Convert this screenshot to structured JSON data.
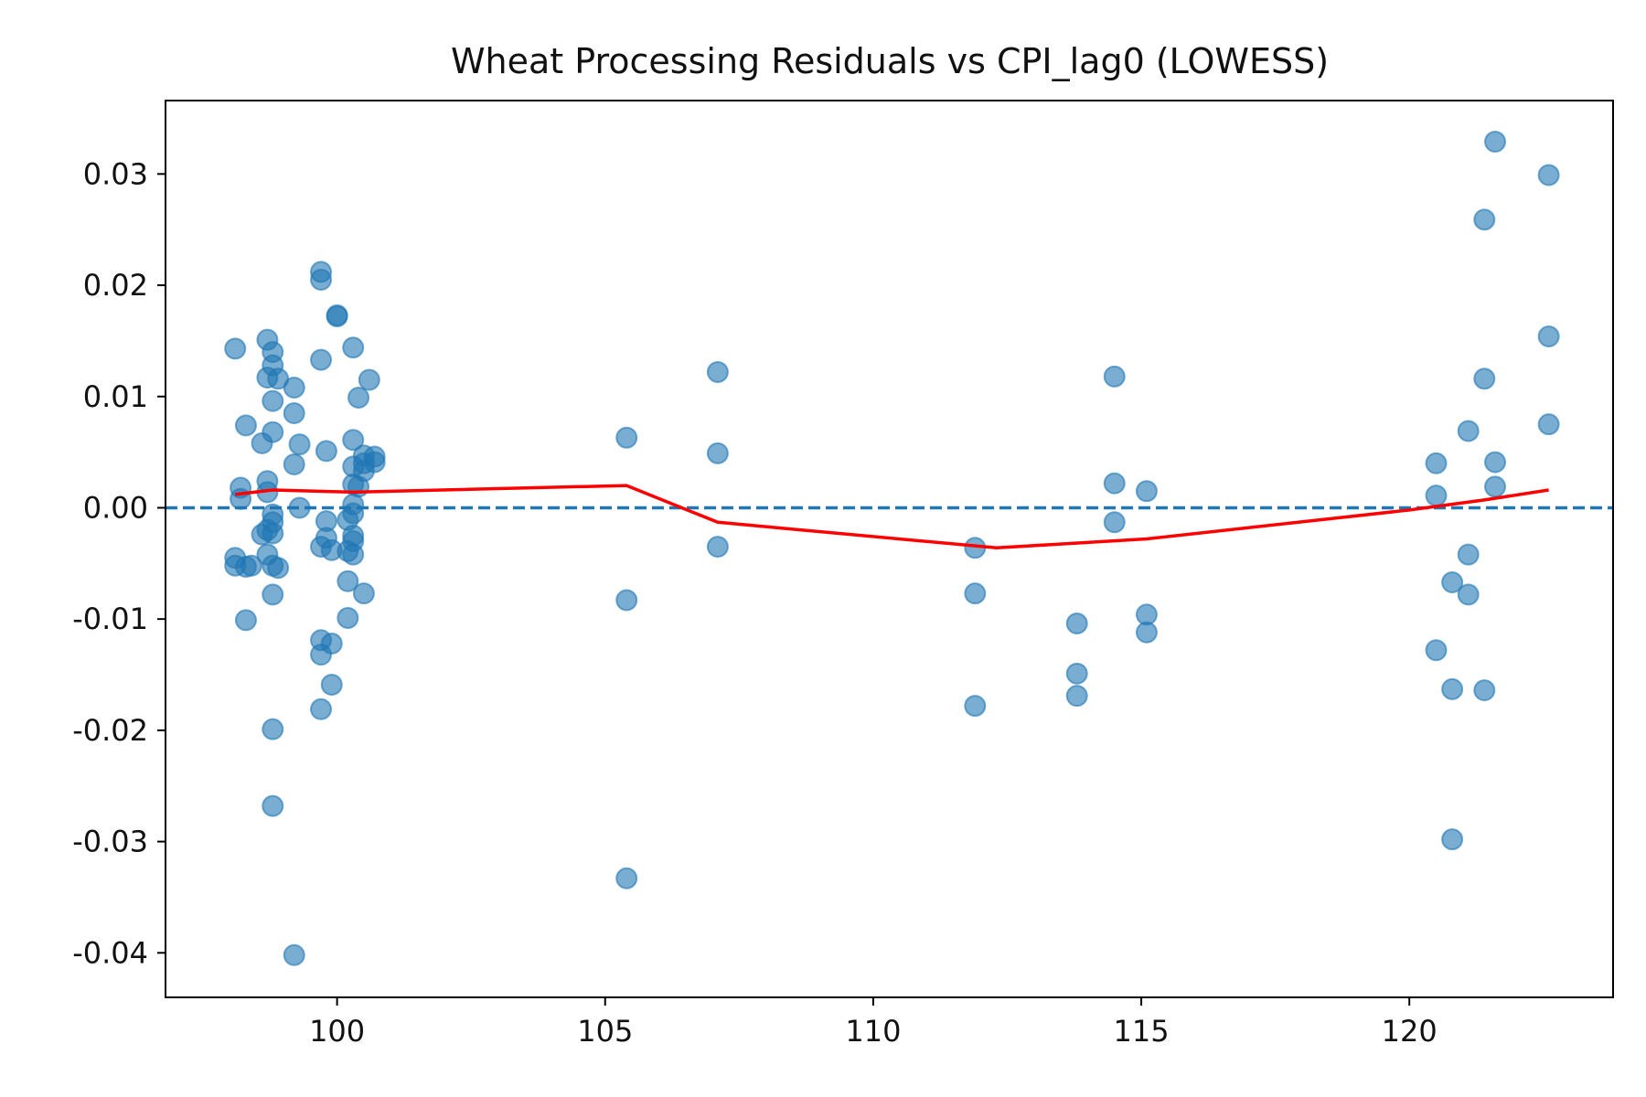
{
  "chart_data": {
    "type": "scatter",
    "title": "Wheat Processing Residuals vs CPI_lag0 (LOWESS)",
    "xlabel": "",
    "ylabel": "",
    "xlim": [
      96.8,
      123.8
    ],
    "ylim": [
      -0.044,
      0.0366
    ],
    "xticks": [
      100,
      105,
      110,
      115,
      120
    ],
    "yticks": [
      0.03,
      0.02,
      0.01,
      0.0,
      -0.01,
      -0.02,
      -0.03,
      -0.04
    ],
    "ytick_labels": [
      "0.03",
      "0.02",
      "0.01",
      "0.00",
      "-0.01",
      "-0.02",
      "-0.03",
      "-0.04"
    ],
    "grid": false,
    "reference_line": {
      "y": 0.0,
      "style": "dashed",
      "color": "#1f77b4"
    },
    "colors": {
      "points": "#1f77b4",
      "lowess": "#ff0000",
      "reference": "#1f77b4"
    },
    "series": [
      {
        "type": "scatter",
        "points": [
          [
            98.1,
            0.0143
          ],
          [
            98.1,
            -0.0045
          ],
          [
            98.1,
            -0.0052
          ],
          [
            98.2,
            0.0018
          ],
          [
            98.2,
            0.0008
          ],
          [
            98.3,
            -0.0053
          ],
          [
            98.4,
            -0.0052
          ],
          [
            98.3,
            0.0074
          ],
          [
            98.3,
            -0.0101
          ],
          [
            98.6,
            0.0058
          ],
          [
            98.6,
            -0.0024
          ],
          [
            98.7,
            0.0151
          ],
          [
            98.7,
            0.0024
          ],
          [
            98.7,
            0.0014
          ],
          [
            98.7,
            -0.0042
          ],
          [
            98.7,
            -0.002
          ],
          [
            98.8,
            0.014
          ],
          [
            98.8,
            0.0128
          ],
          [
            98.7,
            0.0117
          ],
          [
            98.9,
            0.0116
          ],
          [
            98.8,
            0.0096
          ],
          [
            98.8,
            0.0068
          ],
          [
            98.8,
            -0.0006
          ],
          [
            98.8,
            -0.0013
          ],
          [
            98.8,
            -0.0023
          ],
          [
            98.8,
            -0.0052
          ],
          [
            98.9,
            -0.0054
          ],
          [
            98.8,
            -0.0078
          ],
          [
            98.8,
            -0.0199
          ],
          [
            98.8,
            -0.0268
          ],
          [
            99.2,
            0.0108
          ],
          [
            99.2,
            0.0085
          ],
          [
            99.2,
            0.0039
          ],
          [
            99.3,
            0.0057
          ],
          [
            99.3,
            0.0
          ],
          [
            99.2,
            -0.0402
          ],
          [
            99.7,
            0.0212
          ],
          [
            99.7,
            0.0205
          ],
          [
            99.7,
            0.0133
          ],
          [
            99.8,
            -0.0012
          ],
          [
            99.8,
            -0.0027
          ],
          [
            99.7,
            -0.0035
          ],
          [
            99.9,
            -0.0038
          ],
          [
            99.7,
            -0.0119
          ],
          [
            99.9,
            -0.0122
          ],
          [
            99.7,
            -0.0132
          ],
          [
            99.9,
            -0.0159
          ],
          [
            99.7,
            -0.0181
          ],
          [
            99.8,
            0.0051
          ],
          [
            100.0,
            0.0173
          ],
          [
            100.0,
            0.0172
          ],
          [
            100.3,
            0.0144
          ],
          [
            100.4,
            0.0099
          ],
          [
            100.6,
            0.0115
          ],
          [
            100.3,
            0.0061
          ],
          [
            100.5,
            0.0047
          ],
          [
            100.3,
            0.0037
          ],
          [
            100.5,
            0.004
          ],
          [
            100.7,
            0.0046
          ],
          [
            100.7,
            0.0041
          ],
          [
            100.5,
            0.0033
          ],
          [
            100.3,
            0.0021
          ],
          [
            100.4,
            0.0019
          ],
          [
            100.3,
            0.0003
          ],
          [
            100.3,
            -0.0005
          ],
          [
            100.2,
            -0.0011
          ],
          [
            100.3,
            -0.0025
          ],
          [
            100.3,
            -0.003
          ],
          [
            100.2,
            -0.0039
          ],
          [
            100.3,
            -0.0042
          ],
          [
            100.2,
            -0.0066
          ],
          [
            100.5,
            -0.0077
          ],
          [
            100.2,
            -0.0099
          ],
          [
            105.4,
            0.0063
          ],
          [
            105.4,
            -0.0083
          ],
          [
            105.4,
            -0.0333
          ],
          [
            107.1,
            0.0122
          ],
          [
            107.1,
            0.0049
          ],
          [
            107.1,
            -0.0035
          ],
          [
            111.9,
            -0.0036
          ],
          [
            111.9,
            -0.0077
          ],
          [
            111.9,
            -0.0178
          ],
          [
            113.8,
            -0.0104
          ],
          [
            113.8,
            -0.0149
          ],
          [
            113.8,
            -0.0169
          ],
          [
            114.5,
            0.0118
          ],
          [
            114.5,
            0.0022
          ],
          [
            114.5,
            -0.0013
          ],
          [
            115.1,
            0.0015
          ],
          [
            115.1,
            -0.0096
          ],
          [
            115.1,
            -0.0112
          ],
          [
            120.5,
            0.004
          ],
          [
            120.5,
            0.0011
          ],
          [
            120.5,
            -0.0128
          ],
          [
            120.8,
            -0.0067
          ],
          [
            120.8,
            -0.0163
          ],
          [
            120.8,
            -0.0298
          ],
          [
            121.1,
            0.0069
          ],
          [
            121.1,
            -0.0042
          ],
          [
            121.1,
            -0.0078
          ],
          [
            121.4,
            0.0259
          ],
          [
            121.4,
            0.0116
          ],
          [
            121.4,
            -0.0164
          ],
          [
            121.6,
            0.0329
          ],
          [
            121.6,
            0.0041
          ],
          [
            121.6,
            0.0019
          ],
          [
            122.6,
            0.0299
          ],
          [
            122.6,
            0.0154
          ],
          [
            122.6,
            0.0075
          ]
        ]
      },
      {
        "type": "line",
        "points": [
          [
            98.1,
            0.0012
          ],
          [
            98.8,
            0.0016
          ],
          [
            100.3,
            0.0014
          ],
          [
            105.4,
            0.002
          ],
          [
            107.1,
            -0.0013
          ],
          [
            112.3,
            -0.0036
          ],
          [
            115.1,
            -0.0028
          ],
          [
            120.0,
            -0.0002
          ],
          [
            121.4,
            0.0007
          ],
          [
            122.6,
            0.0016
          ]
        ]
      }
    ]
  }
}
